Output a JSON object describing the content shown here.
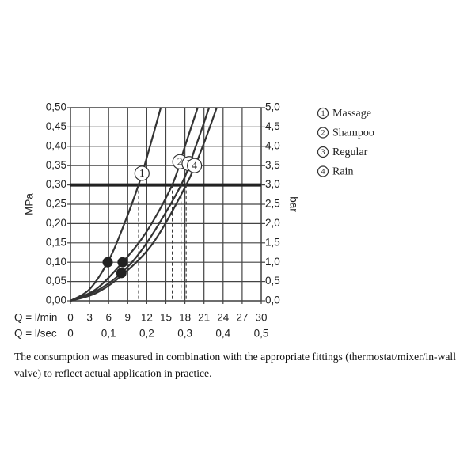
{
  "chart_data": {
    "type": "line",
    "xlabel": "Q = l/min",
    "x2label": "Q = l/sec",
    "ylabel": "MPa",
    "y2label": "bar",
    "xlim": [
      0,
      30
    ],
    "xticks": [
      0,
      3,
      6,
      9,
      12,
      15,
      18,
      21,
      24,
      27,
      30
    ],
    "x2lim": [
      0,
      0.5
    ],
    "x2ticks": [
      0,
      {
        "value": 0.1,
        "label": "0,1"
      },
      {
        "value": 0.2,
        "label": "0,2"
      },
      {
        "value": 0.3,
        "label": "0,3"
      },
      {
        "value": 0.4,
        "label": "0,4"
      },
      {
        "value": 0.5,
        "label": "0,5"
      }
    ],
    "ylim": [
      0,
      0.5
    ],
    "yticks": [
      {
        "value": 0,
        "label": "0,00"
      },
      {
        "value": 0.05,
        "label": "0,05"
      },
      {
        "value": 0.1,
        "label": "0,10"
      },
      {
        "value": 0.15,
        "label": "0,15"
      },
      {
        "value": 0.2,
        "label": "0,20"
      },
      {
        "value": 0.25,
        "label": "0,25"
      },
      {
        "value": 0.3,
        "label": "0,30"
      },
      {
        "value": 0.35,
        "label": "0,35"
      },
      {
        "value": 0.4,
        "label": "0,40"
      },
      {
        "value": 0.45,
        "label": "0,45"
      },
      {
        "value": 0.5,
        "label": "0,50"
      }
    ],
    "y2lim": [
      0,
      5
    ],
    "y2ticks": [
      {
        "value": 0,
        "label": "0,0"
      },
      {
        "value": 0.5,
        "label": "0,5"
      },
      {
        "value": 1,
        "label": "1,0"
      },
      {
        "value": 1.5,
        "label": "1,5"
      },
      {
        "value": 2,
        "label": "2,0"
      },
      {
        "value": 2.5,
        "label": "2,5"
      },
      {
        "value": 3,
        "label": "3,0"
      },
      {
        "value": 3.5,
        "label": "3,5"
      },
      {
        "value": 4,
        "label": "4,0"
      },
      {
        "value": 4.5,
        "label": "4,5"
      },
      {
        "value": 5,
        "label": "5,0"
      }
    ],
    "grid": true,
    "legend": "right",
    "reference_line": 0.3,
    "drop_lines": [
      10.7,
      16,
      17.4,
      18.2
    ],
    "series": [
      {
        "name": "Massage",
        "label": "1",
        "color": "#333333",
        "x": [
          0,
          3,
          5.85,
          8,
          10.7,
          12.5,
          14.2
        ],
        "values": [
          0,
          0.03,
          0.1,
          0.18,
          0.3,
          0.4,
          0.5
        ]
      },
      {
        "name": "Shampoo",
        "label": "2",
        "color": "#333333",
        "x": [
          0,
          4,
          8.2,
          12,
          16,
          18,
          20
        ],
        "values": [
          0,
          0.03,
          0.1,
          0.18,
          0.3,
          0.4,
          0.5
        ]
      },
      {
        "name": "Regular",
        "label": "3",
        "color": "#333333",
        "x": [
          0,
          4,
          8,
          12,
          17.4,
          19.7,
          21.8
        ],
        "values": [
          0,
          0.025,
          0.072,
          0.15,
          0.3,
          0.4,
          0.5
        ]
      },
      {
        "name": "Rain",
        "label": "4",
        "color": "#333333",
        "x": [
          0,
          4,
          8,
          13,
          18.2,
          20.8,
          23
        ],
        "values": [
          0,
          0.02,
          0.065,
          0.15,
          0.3,
          0.4,
          0.5
        ]
      }
    ],
    "markers": [
      {
        "x": 5.85,
        "y": 0.1
      },
      {
        "x": 8.2,
        "y": 0.1
      },
      {
        "x": 8,
        "y": 0.072
      }
    ]
  },
  "caption": "The consumption was measured in combination with the appropriate fittings (thermostat/mixer/in-wall valve) to reflect actual application in practice."
}
